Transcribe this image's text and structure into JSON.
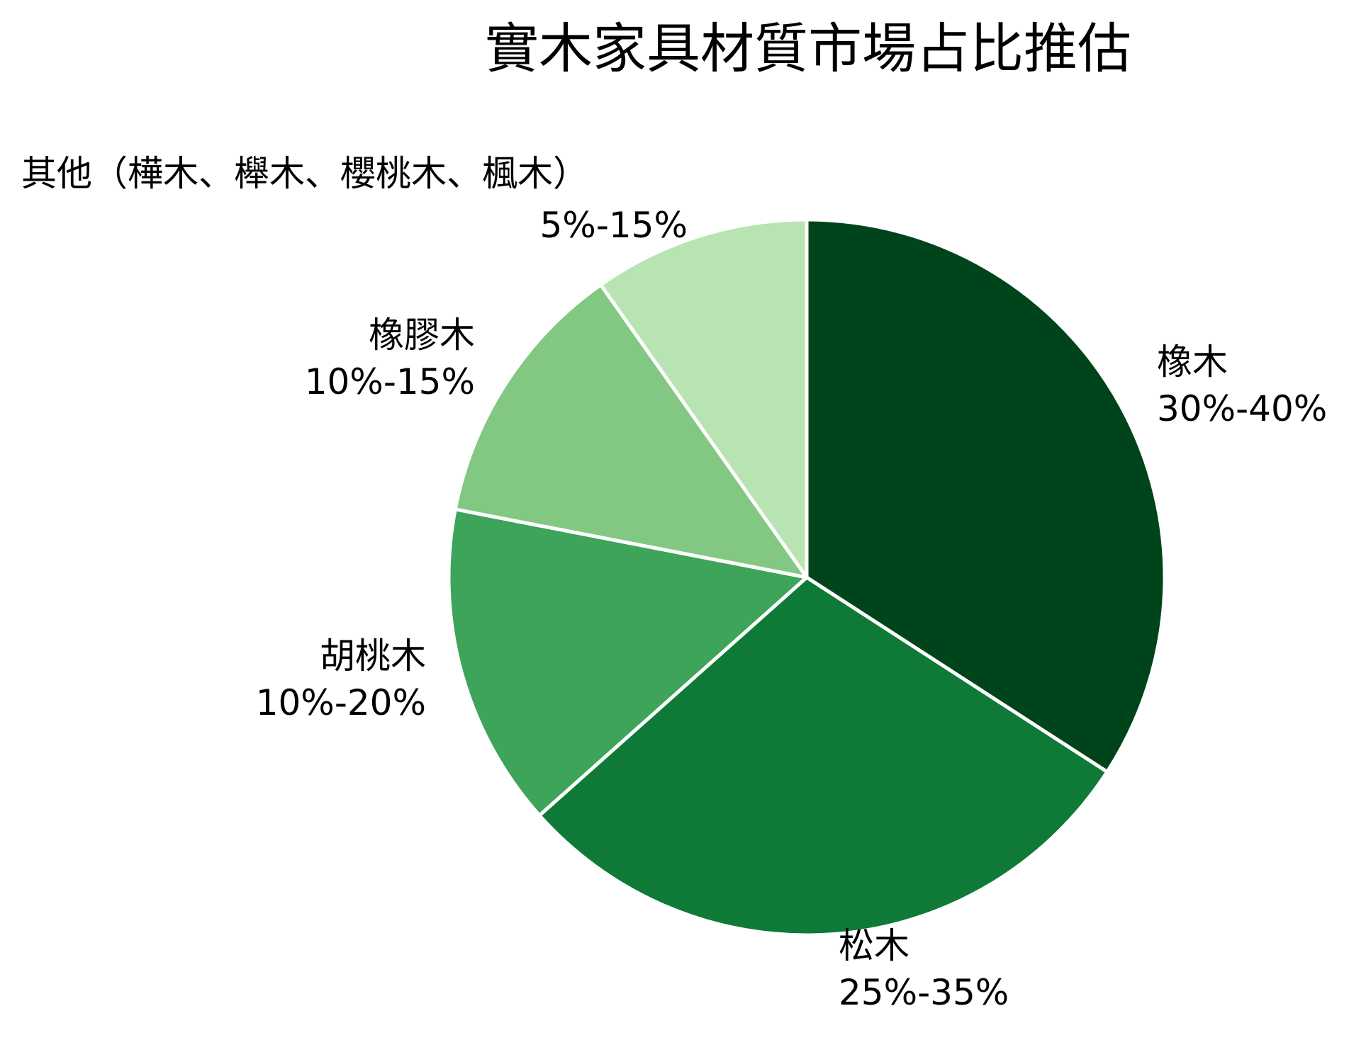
{
  "chart_data": {
    "type": "pie",
    "title": "實木家具材質市場占比推估",
    "slices": [
      {
        "name": "橡木",
        "range": "30%-40%",
        "value": 35,
        "color": "#00441b"
      },
      {
        "name": "松木",
        "range": "25%-35%",
        "value": 30,
        "color": "#0f7a37"
      },
      {
        "name": "胡桃木",
        "range": "10%-20%",
        "value": 15,
        "color": "#3da45a"
      },
      {
        "name": "橡膠木",
        "range": "10%-15%",
        "value": 12.5,
        "color": "#82c882"
      },
      {
        "name": "其他（樺木、櫸木、櫻桃木、楓木）",
        "range": "5%-15%",
        "value": 10,
        "color": "#b8e3b2"
      }
    ],
    "start_angle": "12 o'clock",
    "direction": "clockwise",
    "legend": "none"
  }
}
